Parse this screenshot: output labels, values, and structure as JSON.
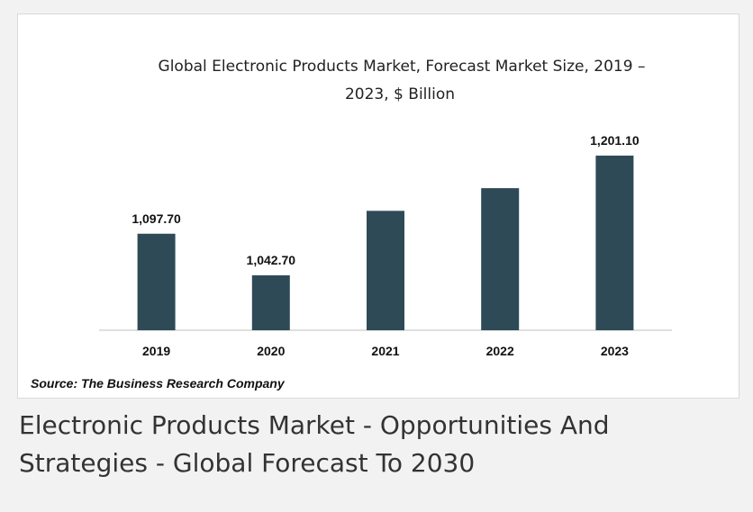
{
  "chart_data": {
    "type": "bar",
    "title_lines": [
      "Global Electronic Products Market, Forecast Market Size, 2019 –",
      "2023, $ Billion"
    ],
    "categories": [
      "2019",
      "2020",
      "2021",
      "2022",
      "2023"
    ],
    "values": [
      1097.7,
      1042.7,
      1128.0,
      1158.0,
      1201.1
    ],
    "data_labels": [
      "1,097.70",
      "1,042.70",
      "",
      "",
      "1,201.10"
    ],
    "ylim": [
      970,
      1226
    ],
    "bar_color": "#2f4a57",
    "grid": false,
    "legend": "none"
  },
  "source_label": "Source: The Business Research Company",
  "caption": {
    "line1": "Electronic Products Market - Opportunities And",
    "line2": "Strategies - Global Forecast To 2030"
  }
}
